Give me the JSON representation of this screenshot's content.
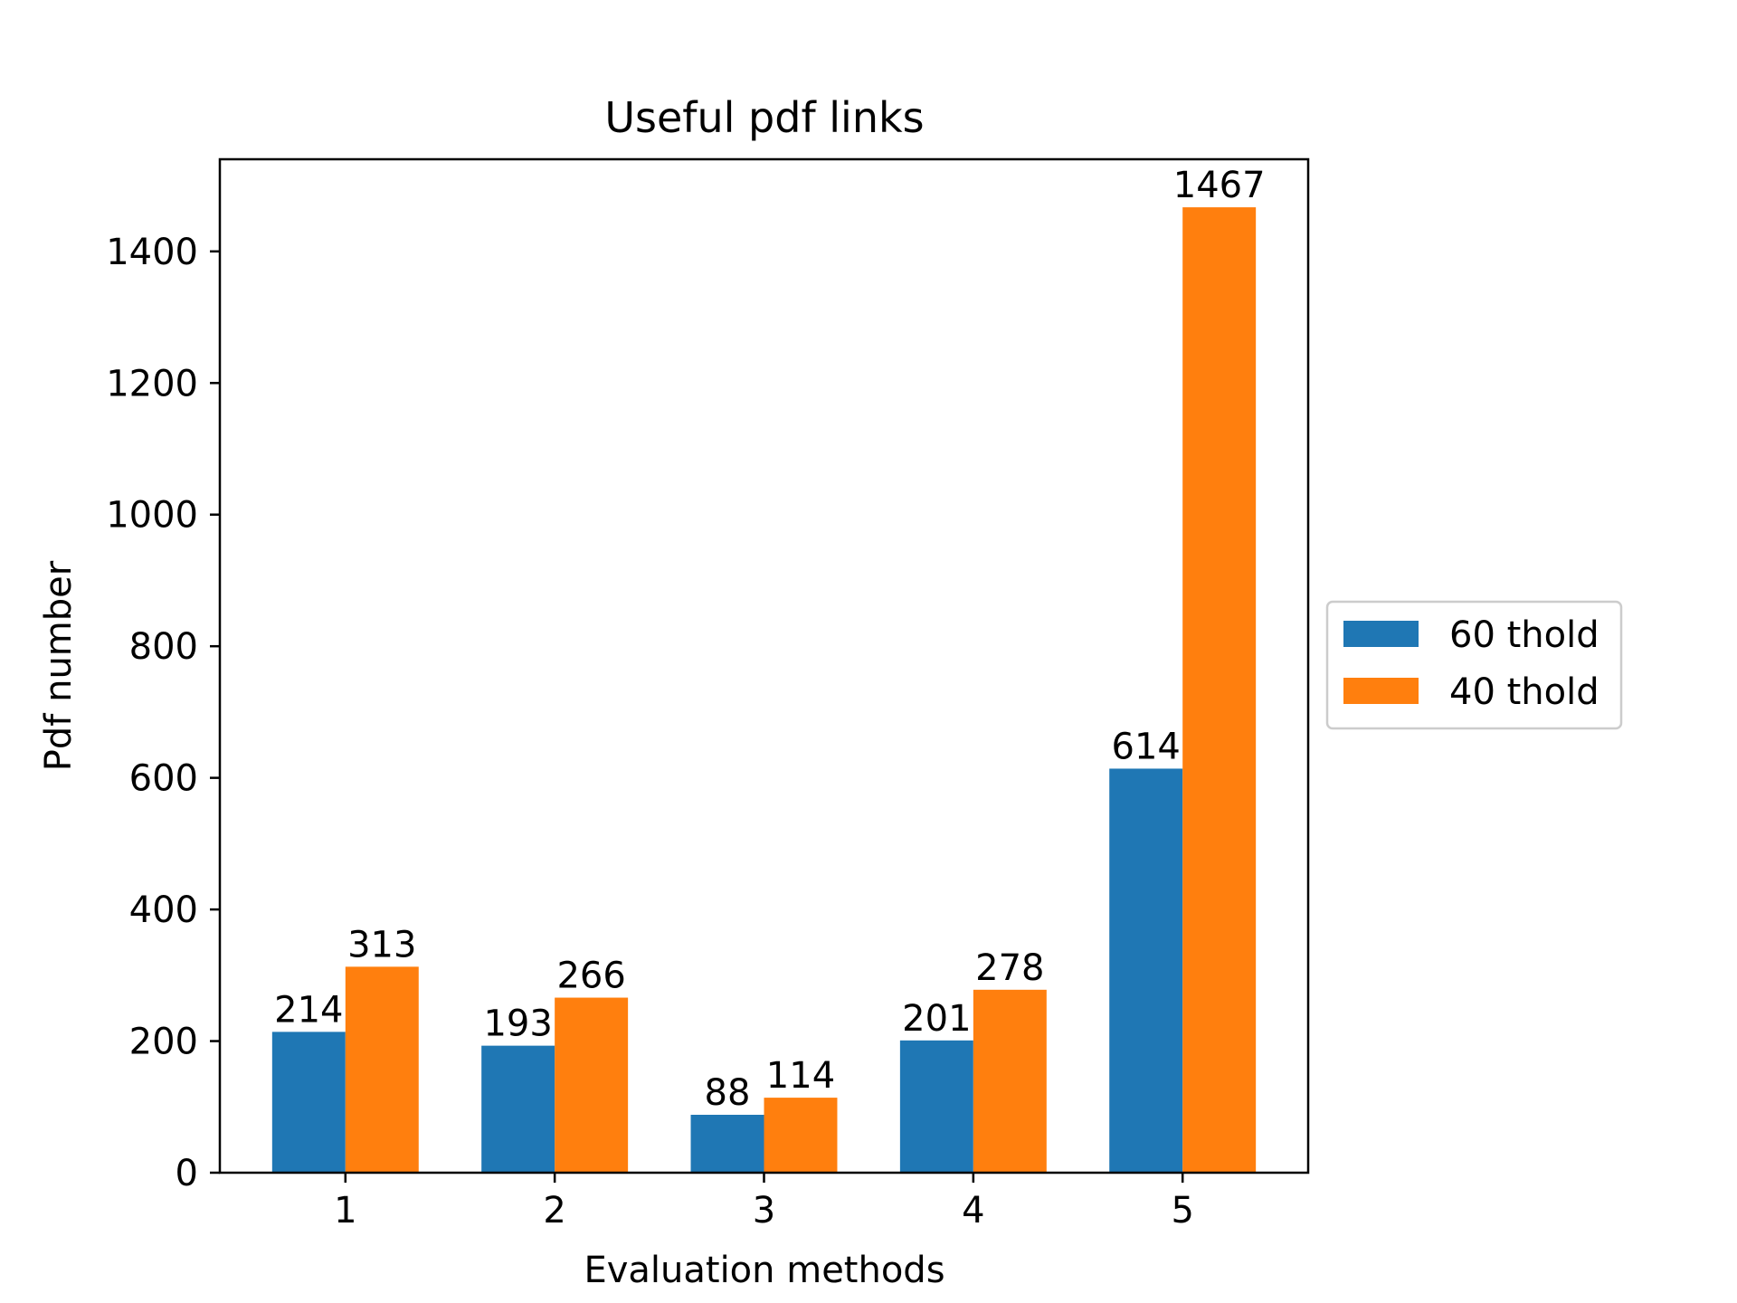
{
  "chart_data": {
    "type": "bar",
    "title": "Useful pdf links",
    "xlabel": "Evaluation methods",
    "ylabel": "Pdf number",
    "categories": [
      "1",
      "2",
      "3",
      "4",
      "5"
    ],
    "series": [
      {
        "name": "60 thold",
        "color": "#1f77b4",
        "values": [
          214,
          193,
          88,
          201,
          614
        ]
      },
      {
        "name": "40 thold",
        "color": "#ff7f0e",
        "values": [
          313,
          266,
          114,
          278,
          1467
        ]
      }
    ],
    "ylim": [
      0,
      1540
    ],
    "yticks": [
      0,
      200,
      400,
      600,
      800,
      1000,
      1200,
      1400
    ],
    "grid": false,
    "legend_position": "outside-right"
  }
}
